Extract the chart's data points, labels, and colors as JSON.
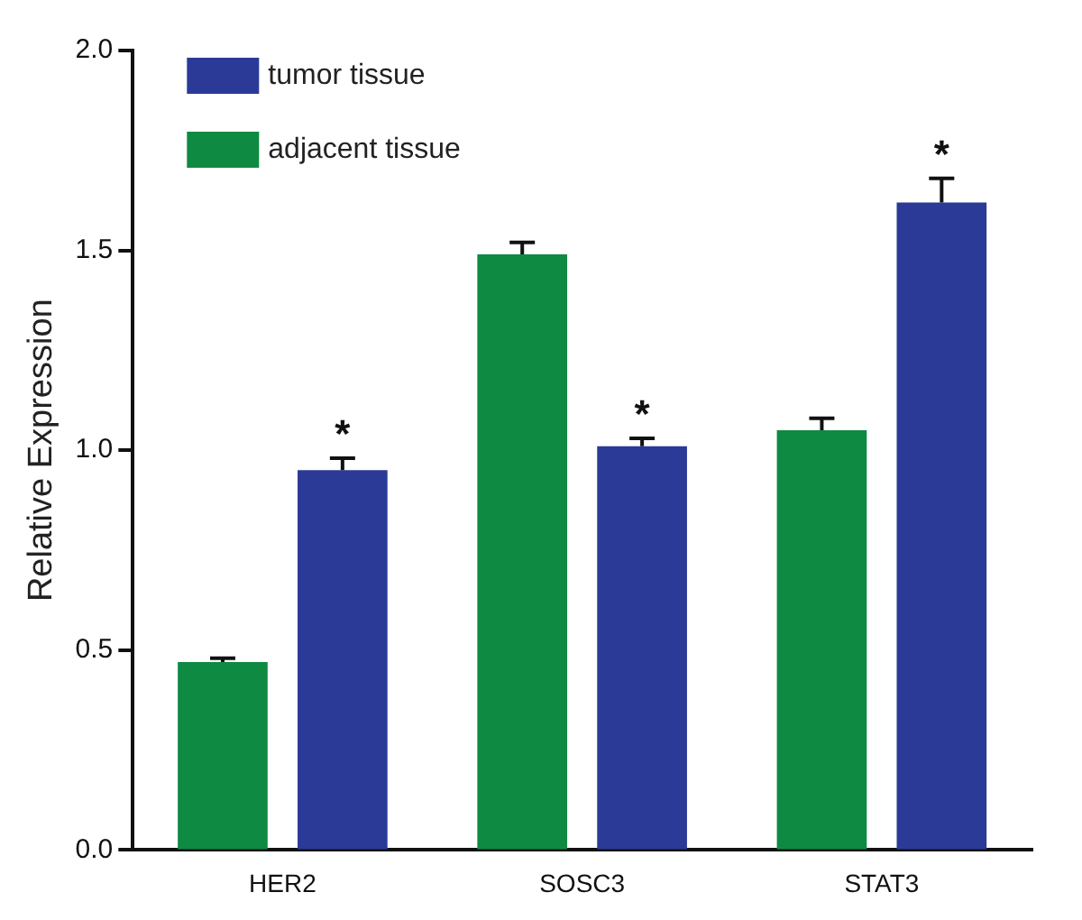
{
  "chart_data": {
    "type": "bar",
    "ylabel": "Relative Expression",
    "categories": [
      "HER2",
      "SOSC3",
      "STAT3"
    ],
    "series": [
      {
        "name": "adjacent tissue",
        "color": "#0e8a43",
        "values": [
          0.47,
          1.49,
          1.05
        ],
        "errors": [
          0.01,
          0.03,
          0.03
        ]
      },
      {
        "name": "tumor tissue",
        "color": "#2a3a96",
        "values": [
          0.95,
          1.01,
          1.62
        ],
        "errors": [
          0.03,
          0.02,
          0.06
        ]
      }
    ],
    "ylim": [
      0,
      2
    ],
    "yticks": [
      {
        "value": 0,
        "label": "0.0"
      },
      {
        "value": 0.5,
        "label": "0.5"
      },
      {
        "value": 1,
        "label": "1.0"
      },
      {
        "value": 1.5,
        "label": "1.5"
      },
      {
        "value": 2,
        "label": "2.0"
      }
    ],
    "legend": "top left",
    "grid": false,
    "annotations": [
      "*",
      "*",
      "*"
    ]
  }
}
